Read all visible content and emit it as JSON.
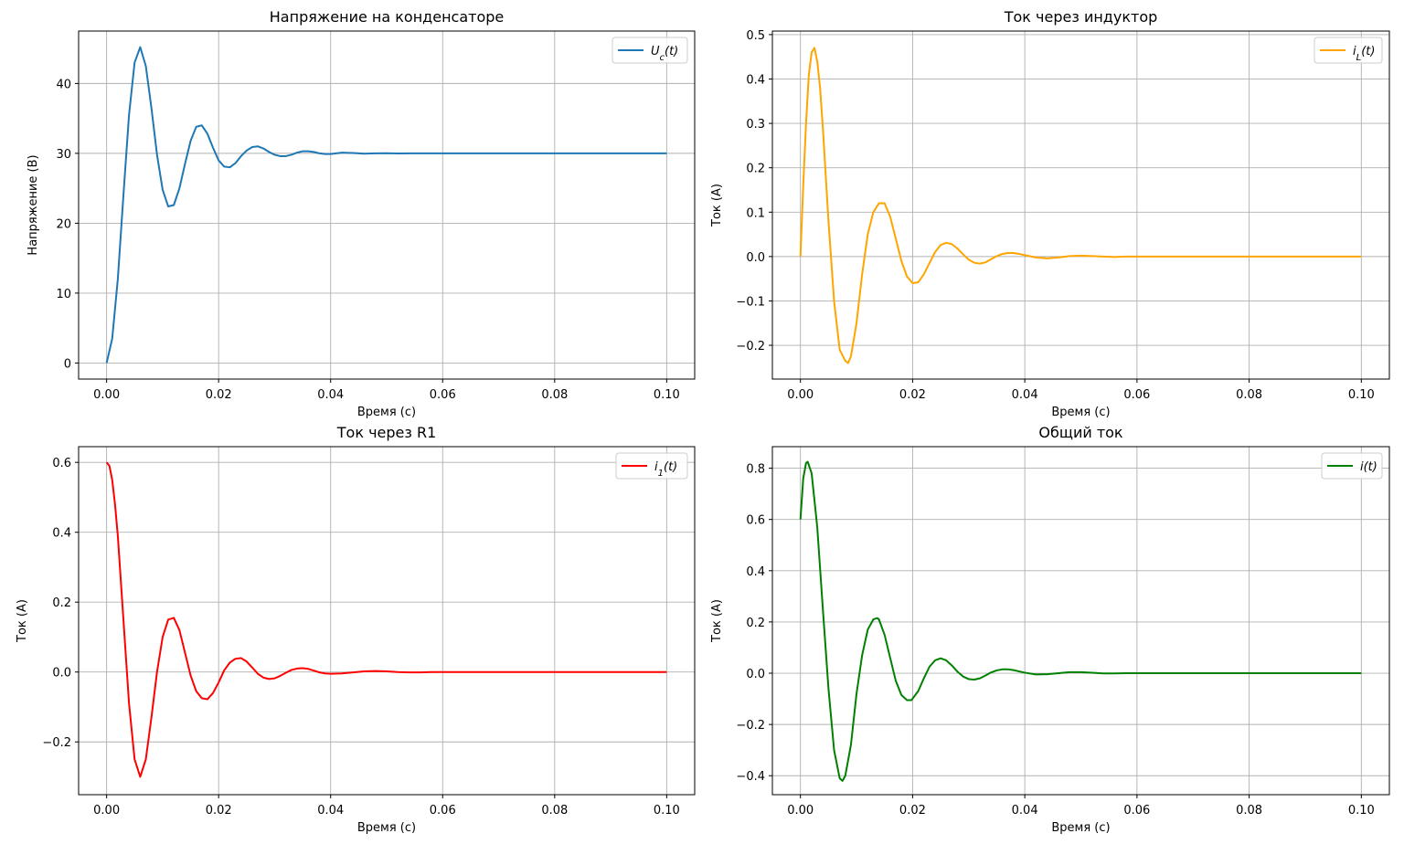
{
  "chart_data": [
    {
      "type": "line",
      "title": "Напряжение на конденсаторе",
      "xlabel": "Время (с)",
      "ylabel": "Напряжение (В)",
      "xlim": [
        -0.005,
        0.105
      ],
      "ylim": [
        -2.3,
        47.5
      ],
      "xticks": [
        0.0,
        0.02,
        0.04,
        0.06,
        0.08,
        0.1
      ],
      "xtick_labels": [
        "0.00",
        "0.02",
        "0.04",
        "0.06",
        "0.08",
        "0.10"
      ],
      "yticks": [
        0,
        10,
        20,
        30,
        40
      ],
      "ytick_labels": [
        "0",
        "10",
        "20",
        "30",
        "40"
      ],
      "grid": true,
      "legend_position": "upper right",
      "series": [
        {
          "name": "U_c(t)",
          "color": "#1f77b4",
          "x": [
            0.0,
            0.001,
            0.002,
            0.003,
            0.004,
            0.005,
            0.006,
            0.007,
            0.008,
            0.009,
            0.01,
            0.011,
            0.012,
            0.013,
            0.014,
            0.015,
            0.016,
            0.017,
            0.018,
            0.019,
            0.02,
            0.021,
            0.022,
            0.023,
            0.024,
            0.025,
            0.026,
            0.027,
            0.028,
            0.029,
            0.03,
            0.031,
            0.032,
            0.033,
            0.034,
            0.035,
            0.036,
            0.037,
            0.038,
            0.039,
            0.04,
            0.042,
            0.044,
            0.046,
            0.048,
            0.05,
            0.052,
            0.054,
            0.056,
            0.058,
            0.06,
            0.065,
            0.07,
            0.075,
            0.08,
            0.085,
            0.09,
            0.095,
            0.1
          ],
          "y": [
            0.0,
            3.5,
            12.0,
            24.0,
            35.5,
            43.0,
            45.2,
            42.5,
            36.5,
            29.8,
            24.8,
            22.4,
            22.6,
            25.0,
            28.5,
            31.8,
            33.8,
            34.0,
            32.8,
            30.8,
            29.0,
            28.1,
            28.0,
            28.6,
            29.6,
            30.4,
            30.9,
            31.0,
            30.7,
            30.2,
            29.8,
            29.6,
            29.6,
            29.8,
            30.1,
            30.3,
            30.3,
            30.2,
            30.0,
            29.9,
            29.9,
            30.1,
            30.05,
            29.95,
            30.0,
            30.02,
            29.99,
            30.0,
            30.0,
            30.0,
            30.0,
            30.0,
            30.0,
            30.0,
            30.0,
            30.0,
            30.0,
            30.0,
            30.0
          ]
        }
      ]
    },
    {
      "type": "line",
      "title": "Ток через индуктор",
      "xlabel": "Время (с)",
      "ylabel": "Ток (А)",
      "xlim": [
        -0.005,
        0.105
      ],
      "ylim": [
        -0.276,
        0.508
      ],
      "xticks": [
        0.0,
        0.02,
        0.04,
        0.06,
        0.08,
        0.1
      ],
      "xtick_labels": [
        "0.00",
        "0.02",
        "0.04",
        "0.06",
        "0.08",
        "0.10"
      ],
      "yticks": [
        -0.2,
        -0.1,
        0.0,
        0.1,
        0.2,
        0.3,
        0.4,
        0.5
      ],
      "ytick_labels": [
        "−0.2",
        "−0.1",
        "0.0",
        "0.1",
        "0.2",
        "0.3",
        "0.4",
        "0.5"
      ],
      "grid": true,
      "legend_position": "upper right",
      "series": [
        {
          "name": "i_L(t)",
          "color": "#ffa500",
          "x": [
            0.0,
            0.0005,
            0.001,
            0.0015,
            0.002,
            0.0025,
            0.003,
            0.0035,
            0.004,
            0.005,
            0.006,
            0.007,
            0.008,
            0.0085,
            0.009,
            0.01,
            0.011,
            0.012,
            0.013,
            0.014,
            0.015,
            0.016,
            0.017,
            0.018,
            0.019,
            0.02,
            0.021,
            0.022,
            0.023,
            0.024,
            0.025,
            0.026,
            0.027,
            0.028,
            0.029,
            0.03,
            0.031,
            0.032,
            0.033,
            0.034,
            0.035,
            0.036,
            0.037,
            0.038,
            0.039,
            0.04,
            0.042,
            0.044,
            0.046,
            0.048,
            0.05,
            0.052,
            0.054,
            0.056,
            0.058,
            0.06,
            0.065,
            0.07,
            0.08,
            0.09,
            0.1
          ],
          "y": [
            0.0,
            0.16,
            0.3,
            0.41,
            0.46,
            0.47,
            0.44,
            0.38,
            0.29,
            0.08,
            -0.1,
            -0.21,
            -0.235,
            -0.24,
            -0.225,
            -0.15,
            -0.04,
            0.05,
            0.1,
            0.12,
            0.12,
            0.09,
            0.04,
            -0.01,
            -0.045,
            -0.06,
            -0.058,
            -0.04,
            -0.015,
            0.01,
            0.026,
            0.031,
            0.028,
            0.018,
            0.005,
            -0.007,
            -0.014,
            -0.016,
            -0.013,
            -0.006,
            0.001,
            0.006,
            0.008,
            0.008,
            0.006,
            0.003,
            -0.002,
            -0.004,
            -0.002,
            0.001,
            0.002,
            0.001,
            0.0,
            -0.001,
            0.0,
            0.0,
            0.0,
            0.0,
            0.0,
            0.0,
            0.0
          ]
        }
      ]
    },
    {
      "type": "line",
      "title": "Ток через R1",
      "xlabel": "Время (с)",
      "ylabel": "Ток (А)",
      "xlim": [
        -0.005,
        0.105
      ],
      "ylim": [
        -0.351,
        0.645
      ],
      "xticks": [
        0.0,
        0.02,
        0.04,
        0.06,
        0.08,
        0.1
      ],
      "xtick_labels": [
        "0.00",
        "0.02",
        "0.04",
        "0.06",
        "0.08",
        "0.10"
      ],
      "yticks": [
        -0.2,
        0.0,
        0.2,
        0.4,
        0.6
      ],
      "ytick_labels": [
        "−0.2",
        "0.0",
        "0.2",
        "0.4",
        "0.6"
      ],
      "grid": true,
      "legend_position": "upper right",
      "series": [
        {
          "name": "i_1(t)",
          "color": "#ff0000",
          "x": [
            0.0,
            0.0005,
            0.001,
            0.0015,
            0.002,
            0.003,
            0.004,
            0.005,
            0.006,
            0.007,
            0.008,
            0.009,
            0.01,
            0.011,
            0.012,
            0.013,
            0.014,
            0.015,
            0.016,
            0.017,
            0.018,
            0.019,
            0.02,
            0.021,
            0.022,
            0.023,
            0.024,
            0.025,
            0.026,
            0.027,
            0.028,
            0.029,
            0.03,
            0.031,
            0.032,
            0.033,
            0.034,
            0.035,
            0.036,
            0.037,
            0.038,
            0.039,
            0.04,
            0.042,
            0.044,
            0.046,
            0.048,
            0.05,
            0.052,
            0.054,
            0.056,
            0.058,
            0.06,
            0.065,
            0.07,
            0.08,
            0.09,
            0.1
          ],
          "y": [
            0.6,
            0.59,
            0.55,
            0.48,
            0.39,
            0.15,
            -0.09,
            -0.25,
            -0.3,
            -0.25,
            -0.13,
            0.0,
            0.1,
            0.15,
            0.155,
            0.12,
            0.055,
            -0.01,
            -0.055,
            -0.075,
            -0.078,
            -0.06,
            -0.03,
            0.005,
            0.027,
            0.038,
            0.04,
            0.03,
            0.013,
            -0.005,
            -0.016,
            -0.02,
            -0.018,
            -0.011,
            -0.002,
            0.006,
            0.01,
            0.011,
            0.009,
            0.004,
            -0.001,
            -0.004,
            -0.005,
            -0.004,
            -0.001,
            0.002,
            0.003,
            0.002,
            0.0,
            -0.001,
            -0.001,
            0.0,
            0.0,
            0.0,
            0.0,
            0.0,
            0.0,
            0.0
          ]
        }
      ]
    },
    {
      "type": "line",
      "title": "Общий ток",
      "xlabel": "Время (с)",
      "ylabel": "Ток (А)",
      "xlim": [
        -0.005,
        0.105
      ],
      "ylim": [
        -0.474,
        0.884
      ],
      "xticks": [
        0.0,
        0.02,
        0.04,
        0.06,
        0.08,
        0.1
      ],
      "xtick_labels": [
        "0.00",
        "0.02",
        "0.04",
        "0.06",
        "0.08",
        "0.10"
      ],
      "yticks": [
        -0.4,
        -0.2,
        0.0,
        0.2,
        0.4,
        0.6,
        0.8
      ],
      "ytick_labels": [
        "−0.4",
        "−0.2",
        "0.0",
        "0.2",
        "0.4",
        "0.6",
        "0.8"
      ],
      "grid": true,
      "legend_position": "upper right",
      "series": [
        {
          "name": "i(t)",
          "color": "#008000",
          "x": [
            0.0,
            0.0005,
            0.001,
            0.0013,
            0.002,
            0.003,
            0.004,
            0.005,
            0.006,
            0.007,
            0.0075,
            0.008,
            0.009,
            0.01,
            0.011,
            0.012,
            0.013,
            0.0137,
            0.014,
            0.015,
            0.016,
            0.017,
            0.018,
            0.019,
            0.0198,
            0.021,
            0.022,
            0.023,
            0.024,
            0.025,
            0.026,
            0.027,
            0.028,
            0.029,
            0.03,
            0.031,
            0.032,
            0.033,
            0.034,
            0.035,
            0.036,
            0.037,
            0.038,
            0.039,
            0.04,
            0.042,
            0.044,
            0.046,
            0.048,
            0.05,
            0.052,
            0.054,
            0.056,
            0.058,
            0.06,
            0.065,
            0.07,
            0.08,
            0.09,
            0.1
          ],
          "y": [
            0.6,
            0.76,
            0.82,
            0.825,
            0.78,
            0.57,
            0.25,
            -0.06,
            -0.3,
            -0.41,
            -0.42,
            -0.4,
            -0.28,
            -0.08,
            0.07,
            0.17,
            0.21,
            0.215,
            0.21,
            0.15,
            0.06,
            -0.03,
            -0.085,
            -0.105,
            -0.105,
            -0.07,
            -0.02,
            0.025,
            0.05,
            0.058,
            0.05,
            0.03,
            0.006,
            -0.013,
            -0.023,
            -0.025,
            -0.02,
            -0.009,
            0.003,
            0.011,
            0.015,
            0.015,
            0.012,
            0.007,
            0.002,
            -0.005,
            -0.004,
            0.0,
            0.004,
            0.004,
            0.002,
            -0.001,
            -0.001,
            0.0,
            0.0,
            0.0,
            0.0,
            0.0,
            0.0,
            0.0
          ]
        }
      ]
    }
  ]
}
